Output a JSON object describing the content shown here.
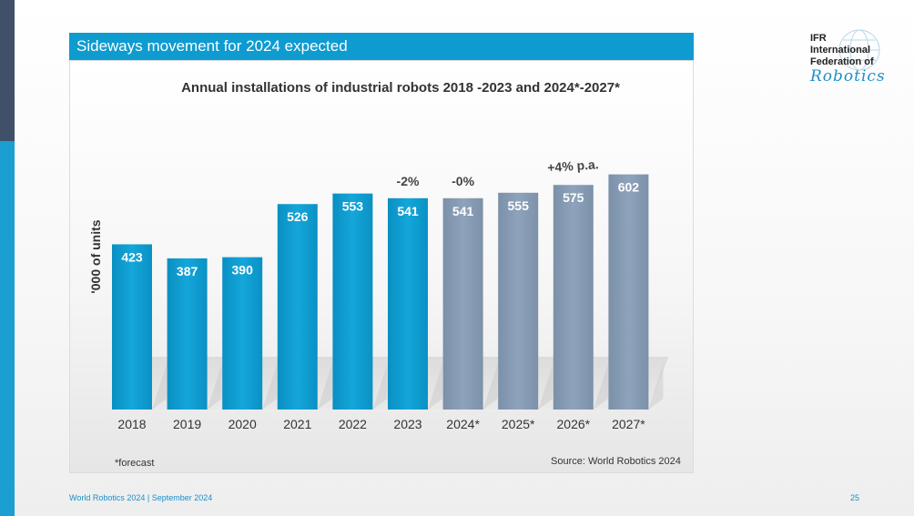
{
  "slide": {
    "title": "Sideways movement for 2024 expected",
    "footer": "World Robotics 2024  | September 2024",
    "page_number": "25"
  },
  "logo": {
    "line1": "IFR",
    "line2": "International",
    "line3": "Federation of",
    "line4": "Robotics"
  },
  "chart_data": {
    "type": "bar",
    "title": "Annual installations of industrial robots 2018 -2023 and 2024*-2027*",
    "ylabel": "'000 of units",
    "xlabel": "",
    "categories": [
      "2018",
      "2019",
      "2020",
      "2021",
      "2022",
      "2023",
      "2024*",
      "2025*",
      "2026*",
      "2027*"
    ],
    "values": [
      423,
      387,
      390,
      526,
      553,
      541,
      541,
      555,
      575,
      602
    ],
    "series_type": [
      "actual",
      "actual",
      "actual",
      "actual",
      "actual",
      "actual",
      "forecast",
      "forecast",
      "forecast",
      "forecast"
    ],
    "colors": {
      "actual": "#0d9acd",
      "forecast": "#8399b2"
    },
    "ylim": [
      0,
      650
    ],
    "annotations": [
      {
        "text": "-2%",
        "category": "2023"
      },
      {
        "text": "-0%",
        "category": "2024*"
      },
      {
        "text": "+4% p.a.",
        "category": "2026*"
      }
    ],
    "footnote": "*forecast",
    "source": "Source: World Robotics 2024"
  }
}
